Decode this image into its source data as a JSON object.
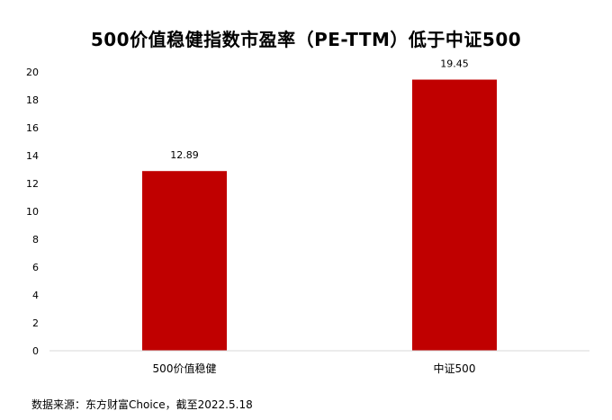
{
  "chart_data": {
    "type": "bar",
    "title": "500价值稳健指数市盈率（PE-TTM）低于中证500",
    "categories": [
      "500价值稳健",
      "中证500"
    ],
    "values": [
      12.89,
      19.45
    ],
    "data_labels": [
      "12.89",
      "19.45"
    ],
    "xlabel": "",
    "ylabel": "",
    "ylim": [
      0,
      20
    ],
    "yticks": [
      0,
      2,
      4,
      6,
      8,
      10,
      12,
      14,
      16,
      18,
      20
    ],
    "grid": false,
    "legend": "none",
    "bar_color": "#C00000"
  },
  "source": "数据来源：东方财富Choice，截至2022.5.18"
}
